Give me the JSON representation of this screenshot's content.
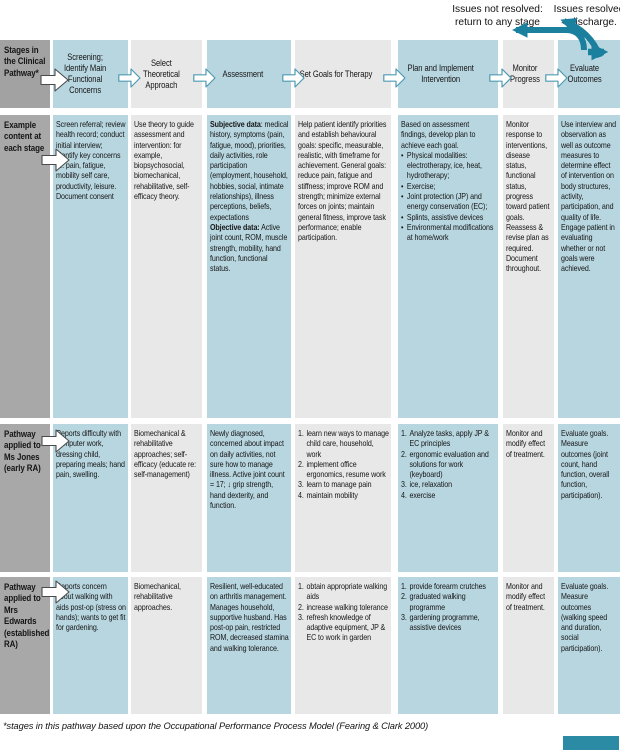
{
  "colors": {
    "cell_blue": "#b8d6e0",
    "cell_gray": "#e8e8e8",
    "label_gray": "#a8a8a8",
    "arrow_teal": "#1b7f9e",
    "stage_arrow_stroke": "#4e9ab2",
    "corner_box": "#2b8aa4"
  },
  "icons": {
    "return_arrow": "curved-arrow-pointing-left",
    "discharge_curve": "curved-arrow-up-left",
    "discharge_out": "straight-arrow-right",
    "stage_connector": "outlined-fat-right-arrow",
    "row_label_connector": "white-fat-right-arrow"
  },
  "annotations": {
    "not_resolved": "Issues not resolved:\nreturn to any stage",
    "resolved": "Issues resolved\n= discharge."
  },
  "header": {
    "row_label": "Stages in the Clinical Pathway*",
    "stages": [
      "Screening; Identify Main Functional Concerns",
      "Select Theoretical Approach",
      "Assessment",
      "Set Goals for Therapy",
      "Plan and Implement Intervention",
      "Monitor Progress",
      "Evaluate Outcomes"
    ]
  },
  "example_row": {
    "row_label": "Example content at each stage",
    "screening": "Screen referral; review health record; conduct initial interview; identify key concerns re: pain, fatigue, mobility self care, productivity, leisure. Document consent",
    "theory": "Use theory to guide assessment and intervention: for example, biopsychosocial, biomechanical, rehabilitative, self-efficacy theory.",
    "assessment": {
      "subjective_label": "Subjective data",
      "subjective_body": ": medical history, symptoms (pain, fatigue, mood), priorities, daily activities, role participation (employment, household, hobbies, social, intimate relationships), illness perceptions, beliefs, expectations",
      "objective_label": "Objective data:",
      "objective_body": "Active joint count, ROM, muscle strength, mobility, hand function, functional status."
    },
    "goals": "Help patient identify priorities and establish behavioural goals: specific, measurable, realistic, with timeframe for achievement. General goals: reduce pain, fatigue and stiffness; improve ROM and strength; minimize external forces on joints; maintain general fitness, improve task performance; enable participation.",
    "plan_intro": "Based on assessment findings, develop plan to achieve each goal.",
    "plan_items": [
      "Physical modalities: electrotherapy, ice, heat, hydrotherapy;",
      "Exercise;",
      "Joint protection (JP) and energy conservation (EC);",
      "Splints, assistive devices",
      "Environmental modifications at home/work"
    ],
    "monitor": "Monitor response to interventions, disease status, functional status, progress toward patient goals. Reassess & revise plan as required. Document throughout.",
    "evaluate": "Use interview and observation as well as outcome measures to determine effect of intervention on body structures, activity, participation, and quality of life. Engage patient in evaluating whether or not goals were achieved."
  },
  "jones_row": {
    "row_label": "Pathway applied to Ms Jones (early RA)",
    "screening": "Reports difficulty with computer work, dressing child, preparing meals; hand pain, swelling.",
    "theory": "Biomechanical & rehabilitative approaches; self-efficacy (educate re: self-management)",
    "assessment": "Newly diagnosed, concerned about impact on daily activities, not sure how to manage illness. Active joint count = 17; ↓ grip strength, hand dexterity, and function.",
    "goals": [
      "learn new ways to manage child care, household, work",
      "implement office ergonomics, resume work",
      "learn to manage pain",
      "maintain mobility"
    ],
    "plan": [
      "Analyze tasks, apply JP & EC principles",
      "ergonomic evaluation and solutions for work (keyboard)",
      "ice, relaxation",
      "exercise"
    ],
    "monitor": "Monitor and modify effect of treatment.",
    "evaluate": "Evaluate goals. Measure outcomes (joint count, hand function, overall function, participation)."
  },
  "edwards_row": {
    "row_label": "Pathway applied to Mrs Edwards (established RA)",
    "screening": "Reports concern about walking with aids post-op (stress on hands); wants to get fit for gardening.",
    "theory": "Biomechanical, rehabilitative approaches.",
    "assessment": "Resilient, well-educated on arthritis management. Manages household, supportive husband. Has post-op pain, restricted ROM, decreased stamina and walking tolerance.",
    "goals": [
      "obtain appropriate walking aids",
      "increase walking tolerance",
      "refresh knowledge of adaptive equipment, JP & EC to work in garden"
    ],
    "plan": [
      "provide forearm crutches",
      "graduated walking programme",
      "gardening programme, assistive devices"
    ],
    "monitor": "Monitor and modify effect of treatment.",
    "evaluate": "Evaluate goals. Measure outcomes (walking speed and duration, social participation)."
  },
  "footnote": "*stages in this pathway based upon the Occupational Performance Process Model (Fearing & Clark 2000)"
}
